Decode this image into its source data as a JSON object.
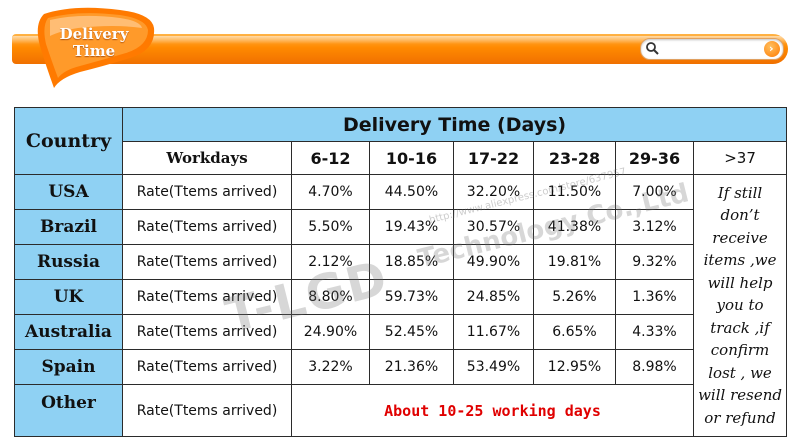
{
  "header": {
    "badge_line1": "Delivery",
    "badge_line2": "Time",
    "accent_color": "#ff8a00",
    "search_icon": "search-icon",
    "go_icon": "arrow-right-icon"
  },
  "table": {
    "header_color": "#8fd1f3",
    "country_header": "Country",
    "delivery_header": "Delivery Time (Days)",
    "workdays_label": "Workdays",
    "ranges": [
      "6-12",
      "10-16",
      "17-22",
      "23-28",
      "29-36"
    ],
    "last_range": ">37",
    "rate_label": "Rate(Ttems arrived)",
    "rows": [
      {
        "country": "USA",
        "values": [
          "4.70%",
          "44.50%",
          "32.20%",
          "11.50%",
          "7.00%"
        ]
      },
      {
        "country": "Brazil",
        "values": [
          "5.50%",
          "19.43%",
          "30.57%",
          "41.38%",
          "3.12%"
        ]
      },
      {
        "country": "Russia",
        "values": [
          "2.12%",
          "18.85%",
          "49.90%",
          "19.81%",
          "9.32%"
        ]
      },
      {
        "country": "UK",
        "values": [
          "8.80%",
          "59.73%",
          "24.85%",
          "5.26%",
          "1.36%"
        ]
      },
      {
        "country": "Australia",
        "values": [
          "24.90%",
          "52.45%",
          "11.67%",
          "6.65%",
          "4.33%"
        ]
      },
      {
        "country": "Spain",
        "values": [
          "3.22%",
          "21.36%",
          "53.49%",
          "12.95%",
          "8.98%"
        ]
      }
    ],
    "other_country": "Other",
    "other_rate_label": "Rate(Ttems arrived)",
    "other_note": "About 10-25 working days",
    "note_lines": [
      "If still",
      "don’t",
      "receive",
      "items ,we",
      "will help",
      "you to",
      "track ,if",
      "confirm",
      "lost , we",
      "will resend",
      "or refund"
    ]
  },
  "watermark": {
    "brand": "T-LGD",
    "company": "Technology Co.,Ltd",
    "url": "http://www.aliexpress.com/store/637957"
  }
}
